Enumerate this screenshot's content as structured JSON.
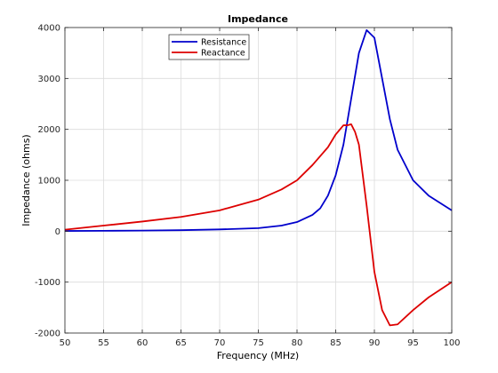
{
  "chart_data": {
    "type": "line",
    "title": "Impedance",
    "xlabel": "Frequency (MHz)",
    "ylabel": "Impedance (ohms)",
    "xlim": [
      50,
      100
    ],
    "ylim": [
      -2000,
      4000
    ],
    "xticks": [
      50,
      55,
      60,
      65,
      70,
      75,
      80,
      85,
      90,
      95,
      100
    ],
    "yticks": [
      -2000,
      -1000,
      0,
      1000,
      2000,
      3000,
      4000
    ],
    "grid": true,
    "legend_position": "top-center",
    "series": [
      {
        "name": "Resistance",
        "color": "#0000cc",
        "x": [
          50,
          55,
          60,
          65,
          70,
          75,
          78,
          80,
          82,
          83,
          84,
          85,
          86,
          87,
          88,
          89,
          90,
          91,
          92,
          93,
          95,
          97,
          100
        ],
        "y": [
          5,
          8,
          12,
          20,
          35,
          60,
          110,
          180,
          320,
          450,
          700,
          1100,
          1700,
          2600,
          3500,
          3950,
          3800,
          3000,
          2200,
          1600,
          1000,
          700,
          410
        ]
      },
      {
        "name": "Reactance",
        "color": "#dd0000",
        "x": [
          50,
          55,
          60,
          65,
          70,
          75,
          78,
          80,
          82,
          84,
          85,
          86,
          86.5,
          87,
          87.5,
          88,
          89,
          90,
          91,
          92,
          93,
          95,
          97,
          100
        ],
        "y": [
          30,
          110,
          190,
          280,
          410,
          620,
          820,
          1000,
          1300,
          1650,
          1900,
          2080,
          2080,
          2100,
          1950,
          1700,
          500,
          -800,
          -1550,
          -1850,
          -1830,
          -1550,
          -1300,
          -1000
        ]
      }
    ]
  }
}
